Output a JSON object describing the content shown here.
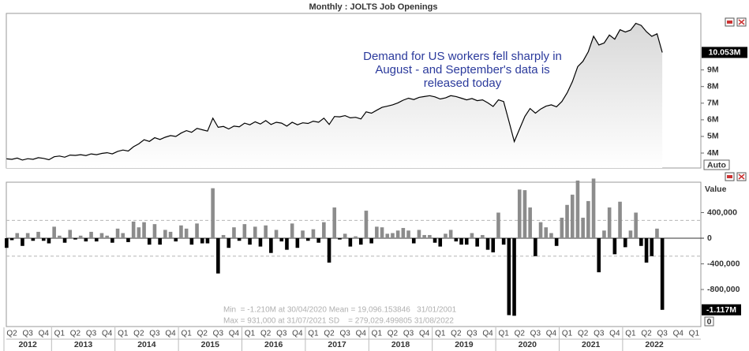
{
  "title": "Monthly : JOLTS Job Openings",
  "chart_data": [
    {
      "type": "line",
      "fill": "area",
      "color": "#000000",
      "annotation": [
        "Demand for US workers fell sharply in",
        "August - and September's data is",
        "released today"
      ],
      "values": [
        3.65,
        3.62,
        3.7,
        3.58,
        3.66,
        3.62,
        3.72,
        3.68,
        3.6,
        3.78,
        3.82,
        3.75,
        3.88,
        3.86,
        3.9,
        3.85,
        3.95,
        3.9,
        3.98,
        4.02,
        3.95,
        4.1,
        4.18,
        4.12,
        4.38,
        4.55,
        4.8,
        4.7,
        4.92,
        4.82,
        4.95,
        5.05,
        5.0,
        5.2,
        5.35,
        5.25,
        5.48,
        5.4,
        5.32,
        6.1,
        5.55,
        5.6,
        5.45,
        5.62,
        5.58,
        5.8,
        5.7,
        5.88,
        5.75,
        5.95,
        5.72,
        5.85,
        5.8,
        5.62,
        5.85,
        5.7,
        5.82,
        5.78,
        5.92,
        5.85,
        6.1,
        5.72,
        6.2,
        6.18,
        6.25,
        6.12,
        6.15,
        6.05,
        6.48,
        6.4,
        6.58,
        6.75,
        6.82,
        6.9,
        7.02,
        7.18,
        7.3,
        7.22,
        7.35,
        7.4,
        7.45,
        7.38,
        7.25,
        7.32,
        7.45,
        7.4,
        7.3,
        7.2,
        7.28,
        7.15,
        7.2,
        7.02,
        6.8,
        7.2,
        7.1,
        5.9,
        4.69,
        5.45,
        6.2,
        6.68,
        6.4,
        6.65,
        6.82,
        6.9,
        6.78,
        7.1,
        7.62,
        8.3,
        9.2,
        9.52,
        10.1,
        11.031,
        10.5,
        10.62,
        11.1,
        10.85,
        11.42,
        11.28,
        11.4,
        11.8,
        11.68,
        11.3,
        11.02,
        11.17,
        10.053
      ],
      "ylim": [
        3.1,
        12.4
      ],
      "yticks": [
        {
          "value": 4,
          "label": "4M"
        },
        {
          "value": 5,
          "label": "5M"
        },
        {
          "value": 6,
          "label": "6M"
        },
        {
          "value": 7,
          "label": "7M"
        },
        {
          "value": 8,
          "label": "8M"
        },
        {
          "value": 9,
          "label": "9M"
        }
      ],
      "last_value": {
        "value": 10.053,
        "label": "10.053M"
      },
      "scale_label": "Auto"
    },
    {
      "type": "bar",
      "colors": {
        "positive": "#8c8c8c",
        "negative": "#000000"
      },
      "values": [
        -150000,
        -30000,
        80000,
        -120000,
        80000,
        -40000,
        100000,
        -40000,
        -80000,
        180000,
        40000,
        -70000,
        130000,
        -20000,
        40000,
        -50000,
        100000,
        -50000,
        80000,
        40000,
        -70000,
        150000,
        80000,
        -60000,
        260000,
        170000,
        250000,
        -100000,
        220000,
        -100000,
        130000,
        100000,
        -50000,
        200000,
        150000,
        -100000,
        230000,
        -80000,
        -80000,
        780000,
        -550000,
        50000,
        -150000,
        170000,
        -40000,
        220000,
        -100000,
        180000,
        -130000,
        200000,
        -230000,
        130000,
        -50000,
        -180000,
        230000,
        -150000,
        120000,
        -40000,
        140000,
        -70000,
        250000,
        -380000,
        480000,
        -20000,
        70000,
        -130000,
        30000,
        -100000,
        430000,
        -80000,
        180000,
        170000,
        70000,
        80000,
        120000,
        160000,
        120000,
        -80000,
        130000,
        50000,
        50000,
        -70000,
        -130000,
        70000,
        130000,
        -50000,
        -100000,
        -100000,
        80000,
        -130000,
        50000,
        -180000,
        -220000,
        400000,
        -100000,
        -1200000,
        -1210000,
        760000,
        750000,
        480000,
        -280000,
        250000,
        170000,
        80000,
        -120000,
        320000,
        520000,
        680000,
        900000,
        320000,
        580000,
        931000,
        -531000,
        120000,
        480000,
        -250000,
        570000,
        -140000,
        120000,
        400000,
        -120000,
        -380000,
        -280000,
        150000,
        -1117000
      ],
      "ylim": [
        -1366000,
        862000
      ],
      "yticks": [
        {
          "value": 400000,
          "label": "400,000"
        },
        0,
        {
          "value": -400000,
          "label": "-400,000"
        },
        {
          "value": -800000,
          "label": "-800,000"
        }
      ],
      "sd_band": [
        279029.499805,
        -279029.499805
      ],
      "last_value": {
        "value": -1117000,
        "label": "-1.117M"
      },
      "axis_label": "Value",
      "corner_label": "0",
      "stats": [
        "Min  = -1.210M at 30/04/2020 Mean = 19,096.153846   31/01/2001",
        "Max = 931,000 at 31/07/2021 SD    = 279,029.499805 31/08/2022"
      ],
      "quarter_labels": [
        "Q2",
        "Q3",
        "Q4",
        "Q1",
        "Q2",
        "Q3",
        "Q4",
        "Q1",
        "Q2",
        "Q3",
        "Q4",
        "Q1",
        "Q2",
        "Q3",
        "Q4",
        "Q1",
        "Q2",
        "Q3",
        "Q4",
        "Q1",
        "Q2",
        "Q3",
        "Q4",
        "Q1",
        "Q2",
        "Q3",
        "Q4",
        "Q1",
        "Q2",
        "Q3",
        "Q4",
        "Q1",
        "Q2",
        "Q3",
        "Q4",
        "Q1",
        "Q2",
        "Q3",
        "Q4",
        "Q1",
        "Q2",
        "Q3",
        "Q4",
        "Q1"
      ],
      "year_labels": [
        "2012",
        "2013",
        "2014",
        "2015",
        "2016",
        "2017",
        "2018",
        "2019",
        "2020",
        "2021",
        "2022"
      ]
    }
  ]
}
